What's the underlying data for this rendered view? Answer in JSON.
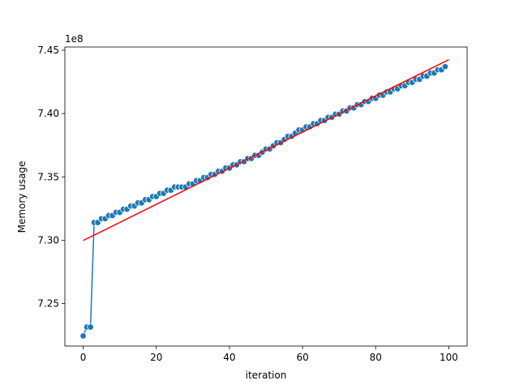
{
  "chart_data": {
    "type": "line",
    "xlabel": "iteration",
    "ylabel": "Memory usage",
    "y_offset_label": "1e8",
    "xlim": [
      -5,
      105
    ],
    "ylim": [
      7.2165,
      7.4525
    ],
    "xticks": [
      0,
      20,
      40,
      60,
      80,
      100
    ],
    "yticks": [
      7.25,
      7.3,
      7.35,
      7.4,
      7.45
    ],
    "grid": false,
    "series": [
      {
        "style": "line-with-markers",
        "color": "#1f77b4",
        "x": [
          0,
          1,
          2,
          3,
          4,
          5,
          6,
          7,
          8,
          9,
          10,
          11,
          12,
          13,
          14,
          15,
          16,
          17,
          18,
          19,
          20,
          21,
          22,
          23,
          24,
          25,
          26,
          27,
          28,
          29,
          30,
          31,
          32,
          33,
          34,
          35,
          36,
          37,
          38,
          39,
          40,
          41,
          42,
          43,
          44,
          45,
          46,
          47,
          48,
          49,
          50,
          51,
          52,
          53,
          54,
          55,
          56,
          57,
          58,
          59,
          60,
          61,
          62,
          63,
          64,
          65,
          66,
          67,
          68,
          69,
          70,
          71,
          72,
          73,
          74,
          75,
          76,
          77,
          78,
          79,
          80,
          81,
          82,
          83,
          84,
          85,
          86,
          87,
          88,
          89,
          90,
          91,
          92,
          93,
          94,
          95,
          96,
          97,
          98,
          99
        ],
        "y": [
          7.2245,
          7.2315,
          7.2315,
          7.314,
          7.314,
          7.317,
          7.317,
          7.3195,
          7.3195,
          7.322,
          7.322,
          7.3245,
          7.3245,
          7.327,
          7.327,
          7.3295,
          7.3295,
          7.332,
          7.332,
          7.3345,
          7.3345,
          7.337,
          7.337,
          7.3395,
          7.3395,
          7.342,
          7.342,
          7.342,
          7.342,
          7.3445,
          7.3445,
          7.347,
          7.347,
          7.3495,
          7.3495,
          7.352,
          7.352,
          7.3545,
          7.3545,
          7.357,
          7.357,
          7.3595,
          7.3595,
          7.362,
          7.362,
          7.3645,
          7.3645,
          7.367,
          7.367,
          7.3695,
          7.372,
          7.372,
          7.3745,
          7.377,
          7.377,
          7.3795,
          7.382,
          7.382,
          7.3845,
          7.387,
          7.387,
          7.3895,
          7.3895,
          7.392,
          7.392,
          7.3945,
          7.3945,
          7.397,
          7.397,
          7.3995,
          7.3995,
          7.402,
          7.402,
          7.4045,
          7.4045,
          7.407,
          7.407,
          7.4095,
          7.4095,
          7.412,
          7.412,
          7.4145,
          7.4145,
          7.417,
          7.417,
          7.4195,
          7.4195,
          7.422,
          7.422,
          7.4245,
          7.4245,
          7.427,
          7.427,
          7.4295,
          7.4295,
          7.432,
          7.432,
          7.4345,
          7.4345,
          7.437
        ]
      },
      {
        "style": "line",
        "color": "#ff0000",
        "x": [
          0,
          100
        ],
        "y": [
          7.2998,
          7.4425
        ]
      }
    ]
  }
}
